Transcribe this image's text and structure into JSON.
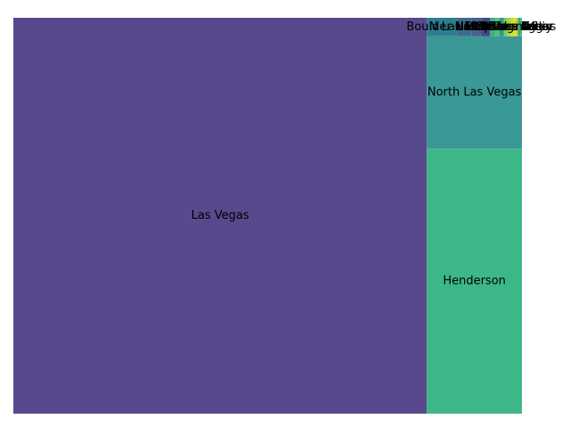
{
  "chart_data": {
    "type": "treemap",
    "title": "",
    "xlabel": "",
    "ylabel": "",
    "axes_visible": false,
    "grid": false,
    "legend": "none",
    "total_value": 100.0,
    "rects": [
      {
        "label": "Las Vegas",
        "value": 81.2,
        "color": "#58498c"
      },
      {
        "label": "North Las Vegas",
        "value": 5.3,
        "color": "#3a9896"
      },
      {
        "label": "Henderson",
        "value": 12.5,
        "color": "#3db787"
      },
      {
        "label": "Boulder City",
        "value": 0.28,
        "color": "#2f7e8f"
      },
      {
        "label": "N Las Vegas",
        "value": 0.13,
        "color": "#3e6b8d"
      },
      {
        "label": "NLV",
        "value": 0.09,
        "color": "#4a5f8e"
      },
      {
        "label": "Las Vegas",
        "value": 0.08,
        "color": "#3f4b8b"
      },
      {
        "label": "HENDERSON",
        "value": 0.05,
        "color": "#3fae85"
      },
      {
        "label": "Henderson",
        "value": 0.04,
        "color": "#55bd7a"
      },
      {
        "label": "North Las Vegas",
        "value": 0.04,
        "color": "#2c9a8b"
      },
      {
        "label": "LAS VEGAS",
        "value": 0.03,
        "color": "#7ecb5f"
      },
      {
        "label": "las vegas",
        "value": 0.03,
        "color": "#a9d83f"
      },
      {
        "label": "Sunrise Manor",
        "value": 0.025,
        "color": "#c9dd2e"
      },
      {
        "label": "Spring Valley",
        "value": 0.025,
        "color": "#e2df25"
      },
      {
        "label": "Paradise",
        "value": 0.02,
        "color": "#b4d636"
      },
      {
        "label": "N. Las Vegas",
        "value": 0.02,
        "color": "#36a585"
      },
      {
        "label": "Summerlin",
        "value": 0.015,
        "color": "#4eb67f"
      }
    ]
  }
}
